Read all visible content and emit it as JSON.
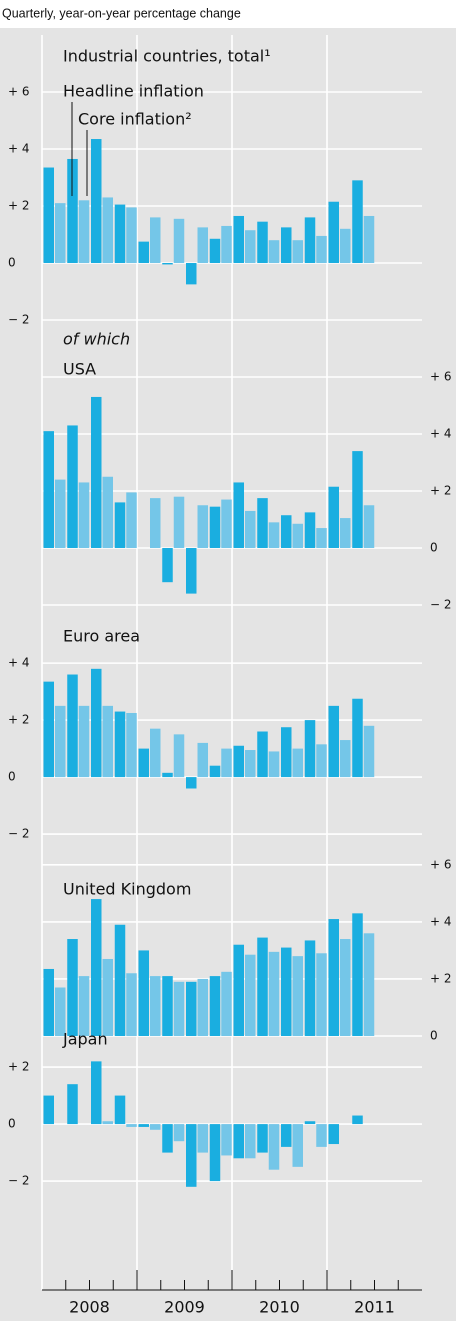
{
  "subtitle": "Quarterly, year-on-year percentage change",
  "x_labels": [
    "2008",
    "2009",
    "2010",
    "2011"
  ],
  "chart_data": [
    {
      "type": "bar",
      "title": "Industrial countries, total¹",
      "axis_side": "left",
      "ylim": [
        -2,
        8
      ],
      "yticks": [
        {
          "value": -2,
          "label": "− 2"
        },
        0,
        {
          "value": 2,
          "label": "+ 2"
        },
        {
          "value": 4,
          "label": "+ 4"
        },
        {
          "value": 6,
          "label": "+ 6"
        }
      ],
      "series": [
        {
          "name": "Headline inflation",
          "color": "#1aaee0",
          "values": [
            3.35,
            3.65,
            4.35,
            2.05,
            0.75,
            -0.05,
            -0.75,
            0.85,
            1.65,
            1.45,
            1.25,
            1.6,
            2.15,
            2.9
          ]
        },
        {
          "name": "Core inflation²",
          "color": "#74c6e8",
          "values": [
            2.1,
            2.2,
            2.3,
            1.95,
            1.6,
            1.55,
            1.25,
            1.3,
            1.15,
            0.8,
            0.8,
            0.95,
            1.2,
            1.65
          ]
        }
      ]
    },
    {
      "type": "bar",
      "title": "USA",
      "note": "of which",
      "axis_side": "right",
      "ylim": [
        -2,
        8
      ],
      "yticks": [
        {
          "value": -2,
          "label": "− 2"
        },
        0,
        {
          "value": 2,
          "label": "+ 2"
        },
        {
          "value": 4,
          "label": "+ 4"
        },
        {
          "value": 6,
          "label": "+ 6"
        }
      ],
      "series": [
        {
          "values": [
            4.1,
            4.3,
            5.3,
            1.6,
            0,
            -1.2,
            -1.6,
            1.45,
            2.3,
            1.75,
            1.15,
            1.25,
            2.15,
            3.4
          ]
        },
        {
          "values": [
            2.4,
            2.3,
            2.5,
            1.95,
            1.75,
            1.8,
            1.5,
            1.7,
            1.3,
            0.9,
            0.85,
            0.7,
            1.05,
            1.5
          ]
        }
      ]
    },
    {
      "type": "bar",
      "title": "Euro area",
      "axis_side": "left",
      "ylim": [
        -2.98,
        6.04
      ],
      "yticks": [
        {
          "value": -2,
          "label": "− 2"
        },
        0,
        {
          "value": 2,
          "label": "+ 2"
        },
        {
          "value": 4,
          "label": "+ 4"
        }
      ],
      "series": [
        {
          "values": [
            3.35,
            3.6,
            3.8,
            2.3,
            1.0,
            0.15,
            -0.4,
            0.4,
            1.1,
            1.6,
            1.75,
            2.0,
            2.5,
            2.75
          ]
        },
        {
          "values": [
            2.5,
            2.5,
            2.5,
            2.25,
            1.7,
            1.5,
            1.2,
            1.0,
            0.95,
            0.9,
            1.0,
            1.15,
            1.3,
            1.8
          ]
        }
      ]
    },
    {
      "type": "bar",
      "title": "United Kingdom",
      "axis_side": "right",
      "ylim": [
        0,
        6.1
      ],
      "yticks": [
        0,
        {
          "value": 2,
          "label": "+ 2"
        },
        {
          "value": 4,
          "label": "+ 4"
        },
        {
          "value": 6,
          "label": "+ 6"
        }
      ],
      "series": [
        {
          "values": [
            2.35,
            3.4,
            4.8,
            3.9,
            3.0,
            2.1,
            1.9,
            2.1,
            3.2,
            3.45,
            3.1,
            3.35,
            4.1,
            4.3
          ]
        },
        {
          "values": [
            1.7,
            2.1,
            2.7,
            2.2,
            2.1,
            1.9,
            2.0,
            2.25,
            2.85,
            2.95,
            2.8,
            2.9,
            3.4,
            3.6
          ]
        }
      ]
    },
    {
      "type": "bar",
      "title": "Japan",
      "axis_side": "left",
      "ylim": [
        -5.82,
        3.09
      ],
      "yticks": [
        {
          "value": -2,
          "label": "− 2"
        },
        0,
        {
          "value": 2,
          "label": "+ 2"
        }
      ],
      "series": [
        {
          "values": [
            1.0,
            1.4,
            2.2,
            1.0,
            -0.1,
            -1.0,
            -2.2,
            -2.0,
            -1.2,
            -1.0,
            -0.8,
            0.1,
            -0.7,
            0.3
          ]
        },
        {
          "values": [
            0.0,
            0.0,
            0.1,
            -0.1,
            -0.2,
            -0.6,
            -1.0,
            -1.1,
            -1.2,
            -1.6,
            -1.5,
            -0.8,
            0.0,
            0.0
          ]
        }
      ]
    }
  ]
}
